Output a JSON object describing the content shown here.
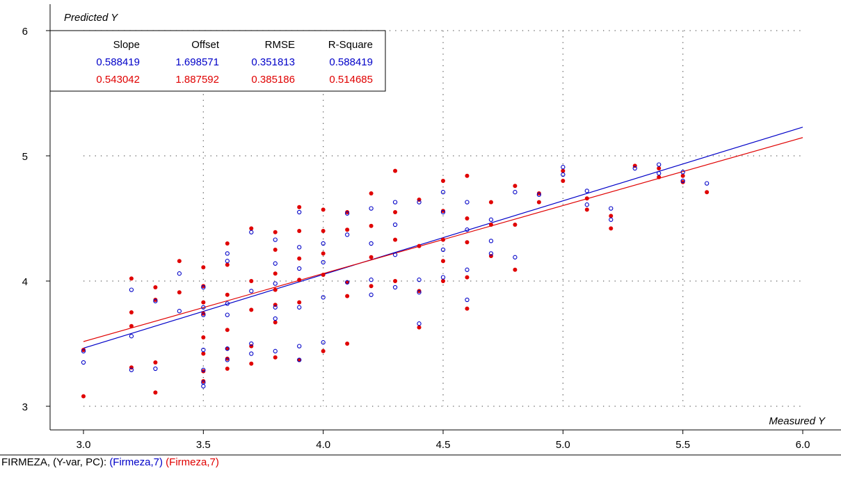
{
  "footer": {
    "prefix": "FIRMEZA, (Y-var, PC):",
    "series_a": "(Firmeza,7)",
    "series_b": "(Firmeza,7)"
  },
  "colors": {
    "blue": "#0000c8",
    "red": "#e00000",
    "grid": "#606060"
  },
  "chart_data": {
    "type": "scatter",
    "title": "",
    "xlabel": "Measured Y",
    "ylabel": "Predicted Y",
    "xlim": [
      2.85,
      6.05
    ],
    "ylim": [
      2.8,
      6.1
    ],
    "xticks": [
      "3.0",
      "3.5",
      "4.0",
      "4.5",
      "5.0",
      "5.5",
      "6.0"
    ],
    "yticks": [
      "3",
      "4",
      "5",
      "6"
    ],
    "grid": true,
    "stats": {
      "headers": [
        "Slope",
        "Offset",
        "RMSE",
        "R-Square"
      ],
      "rows": [
        {
          "values": [
            "0.588419",
            "1.698571",
            "0.351813",
            "0.588419"
          ],
          "color": "#0000c8"
        },
        {
          "values": [
            "0.543042",
            "1.887592",
            "0.385186",
            "0.514685"
          ],
          "color": "#e00000"
        }
      ]
    },
    "series": [
      {
        "marker": "open-circle",
        "color": "#0000c8",
        "slope": 0.588419,
        "offset": 1.698571,
        "x": [
          3.0,
          3.0,
          3.2,
          3.2,
          3.2,
          3.3,
          3.3,
          3.4,
          3.4,
          3.5,
          3.5,
          3.5,
          3.5,
          3.5,
          3.5,
          3.5,
          3.6,
          3.6,
          3.6,
          3.6,
          3.6,
          3.6,
          3.7,
          3.7,
          3.7,
          3.7,
          3.8,
          3.8,
          3.8,
          3.8,
          3.8,
          3.8,
          3.9,
          3.9,
          3.9,
          3.9,
          3.9,
          3.9,
          4.0,
          4.0,
          4.0,
          4.0,
          4.1,
          4.1,
          4.1,
          4.2,
          4.2,
          4.2,
          4.2,
          4.3,
          4.3,
          4.3,
          4.3,
          4.4,
          4.4,
          4.4,
          4.4,
          4.5,
          4.5,
          4.5,
          4.5,
          4.6,
          4.6,
          4.6,
          4.6,
          4.7,
          4.7,
          4.7,
          4.8,
          4.8,
          4.9,
          5.0,
          5.0,
          5.1,
          5.1,
          5.2,
          5.2,
          5.3,
          5.4,
          5.4,
          5.5,
          5.5,
          5.6
        ],
        "y": [
          3.44,
          3.35,
          3.93,
          3.56,
          3.29,
          3.84,
          3.3,
          4.06,
          3.76,
          3.95,
          3.79,
          3.73,
          3.45,
          3.29,
          3.19,
          3.16,
          4.22,
          4.16,
          3.82,
          3.73,
          3.46,
          3.37,
          4.39,
          3.92,
          3.5,
          3.42,
          4.33,
          4.14,
          3.98,
          3.79,
          3.7,
          3.44,
          4.55,
          4.27,
          4.1,
          3.79,
          3.48,
          3.37,
          4.3,
          4.15,
          3.87,
          3.51,
          4.54,
          4.37,
          3.99,
          4.58,
          4.3,
          4.01,
          3.89,
          4.63,
          4.45,
          4.21,
          3.95,
          4.63,
          4.01,
          3.91,
          3.66,
          4.71,
          4.55,
          4.25,
          4.03,
          4.63,
          4.41,
          4.09,
          3.85,
          4.49,
          4.32,
          4.22,
          4.71,
          4.19,
          4.69,
          4.91,
          4.85,
          4.72,
          4.61,
          4.58,
          4.49,
          4.9,
          4.93,
          4.86,
          4.87,
          4.8,
          4.78
        ]
      },
      {
        "marker": "filled-circle",
        "color": "#e00000",
        "slope": 0.543042,
        "offset": 1.887592,
        "x": [
          3.0,
          3.0,
          3.2,
          3.2,
          3.2,
          3.2,
          3.3,
          3.3,
          3.3,
          3.3,
          3.4,
          3.4,
          3.5,
          3.5,
          3.5,
          3.5,
          3.5,
          3.5,
          3.5,
          3.5,
          3.6,
          3.6,
          3.6,
          3.6,
          3.6,
          3.6,
          3.6,
          3.7,
          3.7,
          3.7,
          3.7,
          3.7,
          3.8,
          3.8,
          3.8,
          3.8,
          3.8,
          3.8,
          3.8,
          3.9,
          3.9,
          3.9,
          3.9,
          3.9,
          3.9,
          4.0,
          4.0,
          4.0,
          4.0,
          4.0,
          4.1,
          4.1,
          4.1,
          4.1,
          4.1,
          4.2,
          4.2,
          4.2,
          4.2,
          4.3,
          4.3,
          4.3,
          4.3,
          4.4,
          4.4,
          4.4,
          4.4,
          4.5,
          4.5,
          4.5,
          4.5,
          4.5,
          4.6,
          4.6,
          4.6,
          4.6,
          4.6,
          4.7,
          4.7,
          4.7,
          4.8,
          4.8,
          4.8,
          4.9,
          4.9,
          5.0,
          5.0,
          5.1,
          5.1,
          5.2,
          5.2,
          5.3,
          5.4,
          5.4,
          5.5,
          5.5,
          5.6
        ],
        "y": [
          3.45,
          3.08,
          4.02,
          3.75,
          3.64,
          3.31,
          3.95,
          3.85,
          3.35,
          3.11,
          4.16,
          3.91,
          4.11,
          3.96,
          3.83,
          3.74,
          3.55,
          3.42,
          3.28,
          3.2,
          4.3,
          4.13,
          3.89,
          3.61,
          3.46,
          3.38,
          3.3,
          4.42,
          4.0,
          3.77,
          3.48,
          3.34,
          4.39,
          4.25,
          4.06,
          3.93,
          3.81,
          3.67,
          3.39,
          4.59,
          4.4,
          4.18,
          4.01,
          3.83,
          3.37,
          4.57,
          4.4,
          4.22,
          4.05,
          3.44,
          4.55,
          4.41,
          3.99,
          3.88,
          3.5,
          4.7,
          4.44,
          4.19,
          3.96,
          4.88,
          4.55,
          4.33,
          4.0,
          4.65,
          4.28,
          3.92,
          3.63,
          4.8,
          4.56,
          4.33,
          4.16,
          4.0,
          4.84,
          4.5,
          4.31,
          4.03,
          3.78,
          4.63,
          4.45,
          4.2,
          4.76,
          4.45,
          4.09,
          4.7,
          4.63,
          4.88,
          4.8,
          4.66,
          4.57,
          4.52,
          4.42,
          4.92,
          4.9,
          4.83,
          4.84,
          4.79,
          4.71
        ]
      }
    ]
  }
}
